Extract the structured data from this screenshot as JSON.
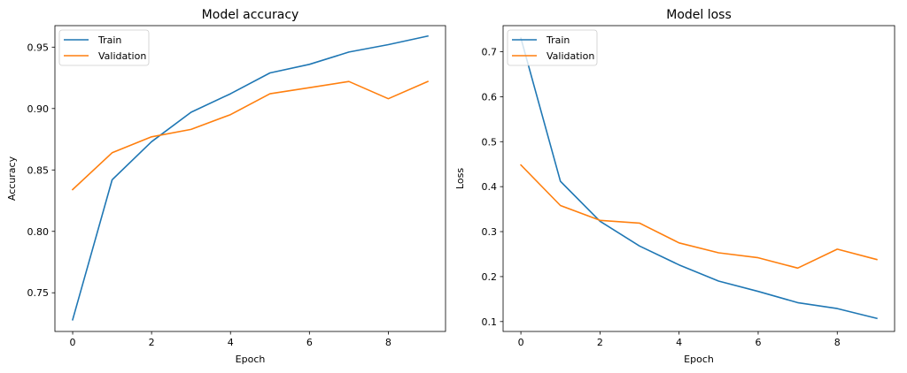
{
  "chart_data": [
    {
      "type": "line",
      "title": "Model accuracy",
      "xlabel": "Epoch",
      "ylabel": "Accuracy",
      "xlim": [
        -0.45,
        9.45
      ],
      "ylim": [
        0.7185,
        0.9675
      ],
      "x": [
        0,
        1,
        2,
        3,
        4,
        5,
        6,
        7,
        8,
        9
      ],
      "xticks": [
        0,
        2,
        4,
        6,
        8
      ],
      "yticks": [
        0.75,
        0.8,
        0.85,
        0.9,
        0.95
      ],
      "ytick_labels": [
        "0.75",
        "0.80",
        "0.85",
        "0.90",
        "0.95"
      ],
      "series": [
        {
          "name": "Train",
          "color": "#1f77b4",
          "values": [
            0.728,
            0.842,
            0.873,
            0.897,
            0.912,
            0.929,
            0.936,
            0.946,
            0.952,
            0.959
          ]
        },
        {
          "name": "Validation",
          "color": "#ff7f0e",
          "values": [
            0.834,
            0.864,
            0.877,
            0.883,
            0.895,
            0.912,
            0.917,
            0.922,
            0.908,
            0.922
          ]
        }
      ],
      "legend_position": "upper left",
      "grid": false
    },
    {
      "type": "line",
      "title": "Model loss",
      "xlabel": "Epoch",
      "ylabel": "Loss",
      "xlim": [
        -0.45,
        9.45
      ],
      "ylim": [
        0.078,
        0.758
      ],
      "x": [
        0,
        1,
        2,
        3,
        4,
        5,
        6,
        7,
        8,
        9
      ],
      "xticks": [
        0,
        2,
        4,
        6,
        8
      ],
      "yticks": [
        0.1,
        0.2,
        0.3,
        0.4,
        0.5,
        0.6,
        0.7
      ],
      "ytick_labels": [
        "0.1",
        "0.2",
        "0.3",
        "0.4",
        "0.5",
        "0.6",
        "0.7"
      ],
      "series": [
        {
          "name": "Train",
          "color": "#1f77b4",
          "values": [
            0.73,
            0.412,
            0.323,
            0.268,
            0.226,
            0.19,
            0.167,
            0.142,
            0.129,
            0.107
          ]
        },
        {
          "name": "Validation",
          "color": "#ff7f0e",
          "values": [
            0.448,
            0.358,
            0.325,
            0.319,
            0.275,
            0.253,
            0.242,
            0.219,
            0.261,
            0.238
          ]
        }
      ],
      "legend_position": "upper left",
      "grid": false
    }
  ]
}
